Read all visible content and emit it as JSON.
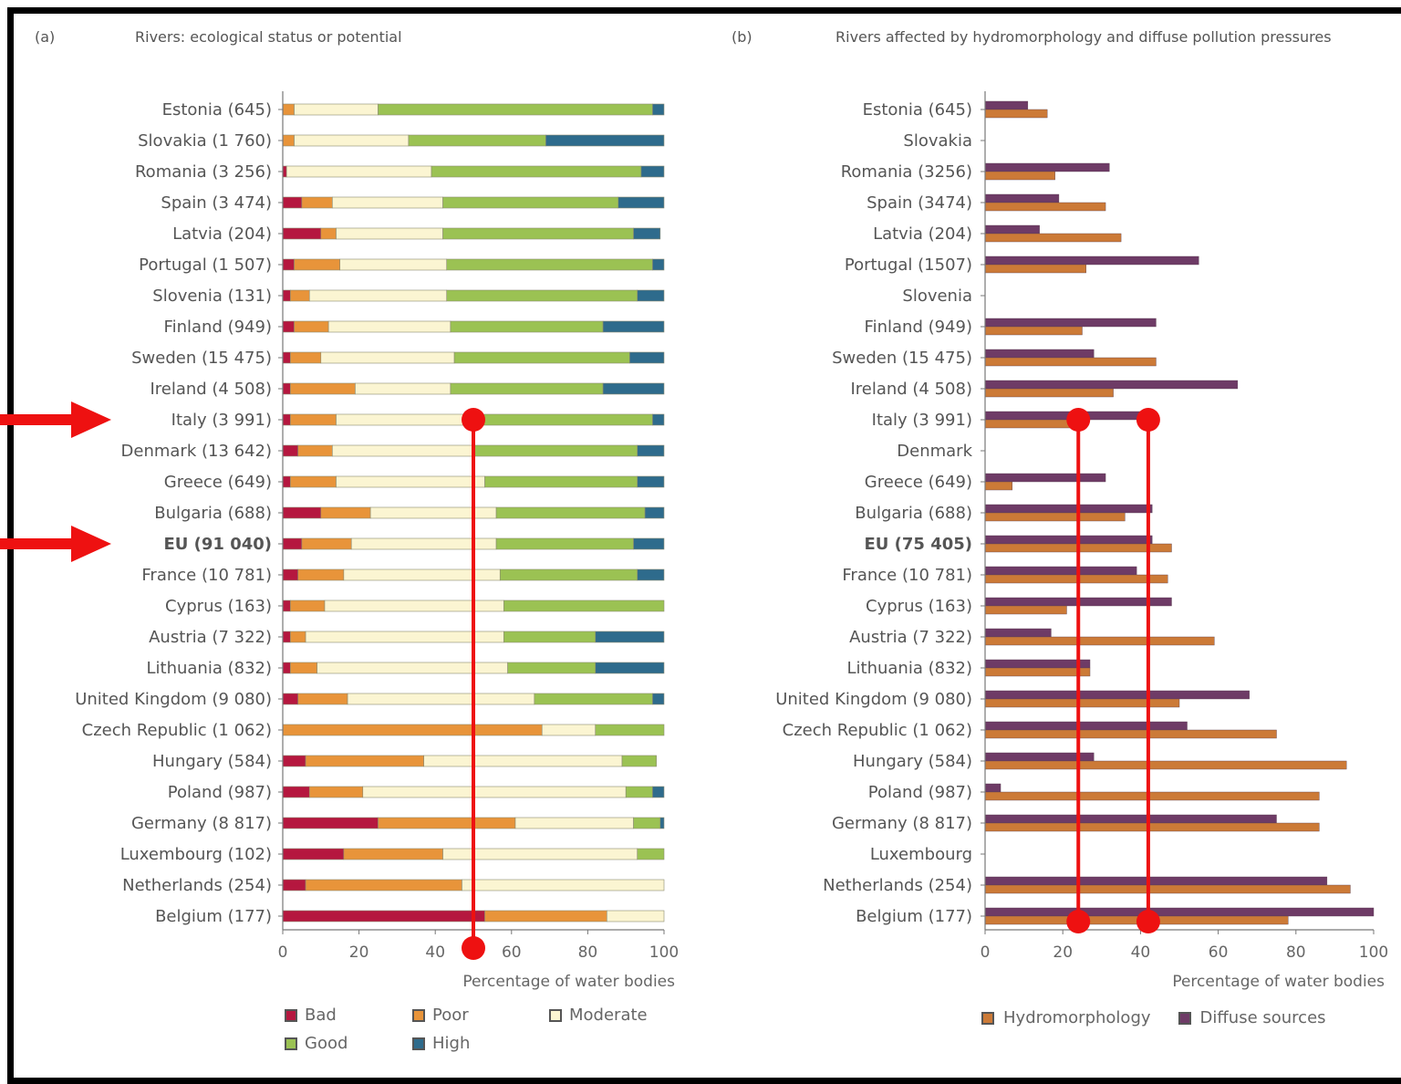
{
  "chart_data": [
    {
      "type": "bar",
      "stacked": true,
      "orientation": "horizontal",
      "panel_label": "(a)",
      "title": "Rivers: ecological status or potential",
      "xlabel": "Percentage of water bodies",
      "xlim": [
        0,
        100
      ],
      "xticks": [
        0,
        20,
        40,
        60,
        80,
        100
      ],
      "categories": [
        "Estonia (645)",
        "Slovakia (1 760)",
        "Romania (3 256)",
        "Spain (3 474)",
        "Latvia (204)",
        "Portugal (1 507)",
        "Slovenia (131)",
        "Finland (949)",
        "Sweden (15 475)",
        "Ireland (4 508)",
        "Italy (3 991)",
        "Denmark (13 642)",
        "Greece (649)",
        "Bulgaria (688)",
        "EU (91 040)",
        "France (10 781)",
        "Cyprus (163)",
        "Austria (7 322)",
        "Lithuania (832)",
        "United Kingdom (9 080)",
        "Czech Republic (1 062)",
        "Hungary (584)",
        "Poland (987)",
        "Germany (8 817)",
        "Luxembourg (102)",
        "Netherlands (254)",
        "Belgium (177)"
      ],
      "bold_categories": [
        "EU (91 040)"
      ],
      "series": [
        {
          "name": "Bad",
          "color": "#b5173f",
          "values": [
            0,
            0,
            1,
            5,
            10,
            3,
            2,
            3,
            2,
            2,
            2,
            4,
            2,
            10,
            5,
            4,
            2,
            2,
            2,
            4,
            0,
            6,
            7,
            25,
            16,
            6,
            53
          ]
        },
        {
          "name": "Poor",
          "color": "#e8943a",
          "values": [
            3,
            3,
            0,
            8,
            4,
            12,
            5,
            9,
            8,
            17,
            12,
            9,
            12,
            13,
            13,
            12,
            9,
            4,
            7,
            13,
            68,
            31,
            14,
            36,
            26,
            41,
            32
          ]
        },
        {
          "name": "Moderate",
          "color": "#fbf5d2",
          "values": [
            22,
            30,
            38,
            29,
            28,
            28,
            36,
            32,
            35,
            25,
            36,
            37,
            39,
            33,
            38,
            41,
            47,
            52,
            50,
            49,
            14,
            52,
            69,
            31,
            51,
            53,
            15
          ]
        },
        {
          "name": "Good",
          "color": "#9bc253",
          "values": [
            72,
            36,
            55,
            46,
            50,
            54,
            50,
            40,
            46,
            40,
            47,
            43,
            40,
            39,
            36,
            36,
            42,
            24,
            23,
            31,
            18,
            9,
            7,
            7,
            7,
            0,
            0
          ]
        },
        {
          "name": "High",
          "color": "#2e6b8c",
          "values": [
            3,
            31,
            6,
            12,
            7,
            3,
            7,
            16,
            9,
            16,
            3,
            7,
            7,
            5,
            8,
            7,
            0,
            18,
            18,
            3,
            0,
            0,
            3,
            1,
            0,
            0,
            0
          ]
        }
      ],
      "legend": "bottom"
    },
    {
      "type": "bar",
      "orientation": "horizontal",
      "panel_label": "(b)",
      "title": "Rivers affected by hydromorphology and diffuse pollution pressures",
      "xlabel": "Percentage of water bodies",
      "xlim": [
        0,
        100
      ],
      "xticks": [
        0,
        20,
        40,
        60,
        80,
        100
      ],
      "categories": [
        "Estonia (645)",
        "Slovakia",
        "Romania (3256)",
        "Spain (3474)",
        "Latvia (204)",
        "Portugal (1507)",
        "Slovenia",
        "Finland (949)",
        "Sweden (15 475)",
        "Ireland (4 508)",
        "Italy (3 991)",
        "Denmark",
        "Greece (649)",
        "Bulgaria (688)",
        "EU (75 405)",
        "France (10 781)",
        "Cyprus (163)",
        "Austria (7 322)",
        "Lithuania (832)",
        "United Kingdom (9 080)",
        "Czech Republic (1 062)",
        "Hungary (584)",
        "Poland (987)",
        "Germany (8 817)",
        "Luxembourg",
        "Netherlands (254)",
        "Belgium (177)"
      ],
      "bold_categories": [
        "EU (75 405)"
      ],
      "series": [
        {
          "name": "Diffuse sources",
          "color": "#6e3b66",
          "values": [
            11,
            null,
            32,
            19,
            14,
            55,
            null,
            44,
            28,
            65,
            40,
            null,
            31,
            43,
            43,
            39,
            48,
            17,
            27,
            68,
            52,
            28,
            4,
            75,
            null,
            88,
            100
          ]
        },
        {
          "name": "Hydromorphology",
          "color": "#cc7a37",
          "values": [
            16,
            null,
            18,
            31,
            35,
            26,
            null,
            25,
            44,
            33,
            24,
            null,
            7,
            36,
            48,
            47,
            21,
            59,
            27,
            50,
            75,
            93,
            86,
            86,
            null,
            94,
            78
          ]
        }
      ],
      "legend": "bottom"
    }
  ],
  "annotations": {
    "color": "#ee1111",
    "arrow_targets": [
      "Italy (3 991)",
      "EU (91 040)"
    ],
    "vertical_markers": [
      {
        "panel": 0,
        "x": 50,
        "from": "Italy (3 991)"
      },
      {
        "panel": 1,
        "x": 24,
        "from": "Italy (3 991)"
      },
      {
        "panel": 1,
        "x": 42,
        "from": "Italy (3 991)"
      }
    ]
  }
}
